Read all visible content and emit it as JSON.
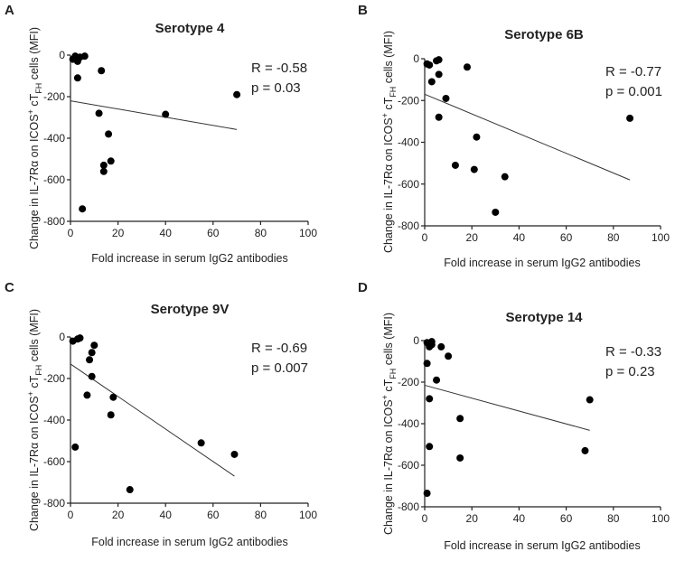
{
  "figure": {
    "xlabel": "Fold increase in serum IgG2 antibodies",
    "ylabel_prefix": "Change in IL-7Rα on ICOS",
    "ylabel_sup": "+",
    "ylabel_mid": " cT",
    "ylabel_sub": "FH",
    "ylabel_suffix": " cells (MFI)"
  },
  "chart_data": [
    {
      "type": "scatter",
      "panel": "A",
      "title": "Serotype 4",
      "stat_r": "R = -0.58",
      "stat_p": "p = 0.03",
      "xlim": [
        0,
        100
      ],
      "ylim": [
        -800,
        0
      ],
      "xticks": [
        0,
        20,
        40,
        60,
        80,
        100
      ],
      "yticks": [
        0,
        -200,
        -400,
        -600,
        -800
      ],
      "points": [
        [
          1,
          -20
        ],
        [
          2,
          -5
        ],
        [
          3,
          -30
        ],
        [
          3,
          -110
        ],
        [
          4,
          -10
        ],
        [
          6,
          -5
        ],
        [
          5,
          -740
        ],
        [
          12,
          -280
        ],
        [
          13,
          -75
        ],
        [
          14,
          -530
        ],
        [
          14,
          -560
        ],
        [
          16,
          -380
        ],
        [
          17,
          -510
        ],
        [
          40,
          -285
        ],
        [
          70,
          -190
        ]
      ],
      "fit": [
        [
          0,
          -220
        ],
        [
          70,
          -358
        ]
      ]
    },
    {
      "type": "scatter",
      "panel": "B",
      "title": "Serotype 6B",
      "stat_r": "R = -0.77",
      "stat_p": "p = 0.001",
      "xlim": [
        0,
        100
      ],
      "ylim": [
        -800,
        0
      ],
      "xticks": [
        0,
        20,
        40,
        60,
        80,
        100
      ],
      "yticks": [
        0,
        -200,
        -400,
        -600,
        -800
      ],
      "points": [
        [
          1,
          -25
        ],
        [
          2,
          -30
        ],
        [
          3,
          -110
        ],
        [
          5,
          -10
        ],
        [
          6,
          -5
        ],
        [
          6,
          -75
        ],
        [
          6,
          -280
        ],
        [
          9,
          -190
        ],
        [
          13,
          -510
        ],
        [
          18,
          -40
        ],
        [
          21,
          -530
        ],
        [
          22,
          -375
        ],
        [
          30,
          -735
        ],
        [
          34,
          -565
        ],
        [
          87,
          -285
        ]
      ],
      "fit": [
        [
          0,
          -170
        ],
        [
          87,
          -580
        ]
      ]
    },
    {
      "type": "scatter",
      "panel": "C",
      "title": "Serotype 9V",
      "stat_r": "R = -0.69",
      "stat_p": "p = 0.007",
      "xlim": [
        0,
        100
      ],
      "ylim": [
        -800,
        0
      ],
      "xticks": [
        0,
        20,
        40,
        60,
        80,
        100
      ],
      "yticks": [
        0,
        -200,
        -400,
        -600,
        -800
      ],
      "points": [
        [
          1,
          -20
        ],
        [
          2,
          -530
        ],
        [
          3,
          -10
        ],
        [
          4,
          -5
        ],
        [
          7,
          -280
        ],
        [
          8,
          -110
        ],
        [
          9,
          -75
        ],
        [
          9,
          -190
        ],
        [
          10,
          -40
        ],
        [
          17,
          -375
        ],
        [
          18,
          -290
        ],
        [
          25,
          -735
        ],
        [
          55,
          -510
        ],
        [
          69,
          -565
        ]
      ],
      "fit": [
        [
          0,
          -130
        ],
        [
          69,
          -670
        ]
      ]
    },
    {
      "type": "scatter",
      "panel": "D",
      "title": "Serotype 14",
      "stat_r": "R = -0.33",
      "stat_p": "p = 0.23",
      "xlim": [
        0,
        100
      ],
      "ylim": [
        -800,
        0
      ],
      "xticks": [
        0,
        20,
        40,
        60,
        80,
        100
      ],
      "yticks": [
        0,
        -200,
        -400,
        -600,
        -800
      ],
      "points": [
        [
          1,
          -10
        ],
        [
          1,
          -110
        ],
        [
          2,
          -280
        ],
        [
          2,
          -510
        ],
        [
          1,
          -735
        ],
        [
          2,
          -30
        ],
        [
          3,
          -5
        ],
        [
          3,
          -20
        ],
        [
          5,
          -190
        ],
        [
          7,
          -30
        ],
        [
          10,
          -75
        ],
        [
          15,
          -375
        ],
        [
          15,
          -565
        ],
        [
          68,
          -530
        ],
        [
          70,
          -285
        ]
      ],
      "fit": [
        [
          0,
          -215
        ],
        [
          70,
          -432
        ]
      ]
    }
  ]
}
